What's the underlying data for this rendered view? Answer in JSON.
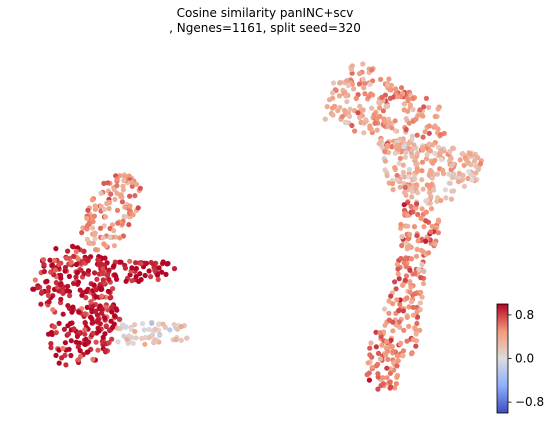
{
  "chart_data": {
    "type": "scatter",
    "title_line1": "Cosine similarity panINC+scv",
    "title_line2": ", Ngenes=1161, split seed=320",
    "xlabel": "",
    "ylabel": "",
    "axes_visible": false,
    "grid": false,
    "colormap": "coolwarm",
    "colorbar": {
      "vmin": -1.0,
      "vmax": 1.0,
      "ticks": [
        0.8,
        0.0,
        -0.8
      ],
      "tick_labels": [
        "0.8",
        "0.0",
        "−0.8"
      ],
      "placement": "bottom-right"
    },
    "clusters": [
      {
        "region": "left cluster, upper stem",
        "approx_value": 0.5
      },
      {
        "region": "left cluster, middle arm",
        "approx_value": 0.95
      },
      {
        "region": "left cluster, lower body",
        "approx_value": 0.9
      },
      {
        "region": "left cluster, lower arm tip",
        "approx_value": 0.1
      },
      {
        "region": "right cluster, upper lobe",
        "approx_value": 0.45
      },
      {
        "region": "right cluster, right bulge",
        "approx_value": 0.3
      },
      {
        "region": "right cluster, lower stem",
        "approx_value": 0.55
      }
    ],
    "colors": {
      "max": "#b40426",
      "mid": "#dddcdc",
      "min": "#3b4cc0"
    }
  }
}
